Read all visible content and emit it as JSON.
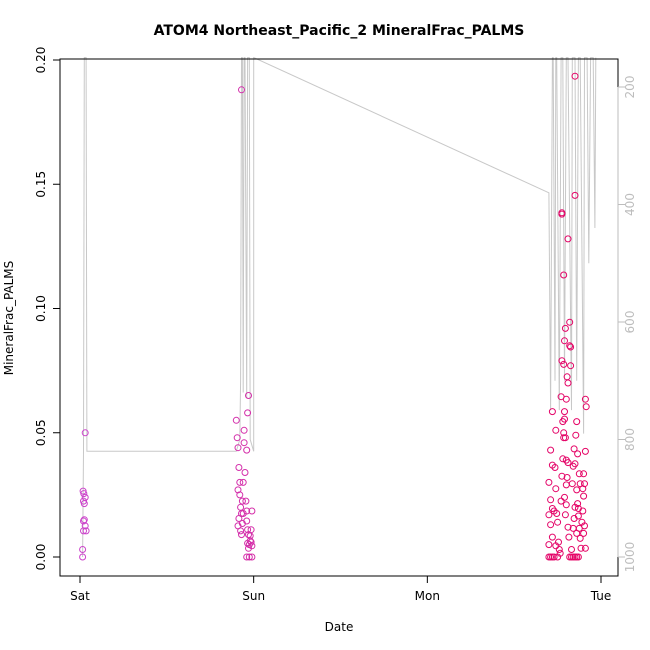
{
  "chart_data": {
    "type": "scatter",
    "title": "ATOM4 Northeast_Pacific_2 MineralFrac_PALMS",
    "xlabel": "Date",
    "ylabel": "MineralFrac_PALMS",
    "x_ticks": [
      "Sat",
      "Sun",
      "Mon",
      "Tue"
    ],
    "xlim": [
      -0.02,
      3.05
    ],
    "ylim": [
      -0.0065,
      0.2
    ],
    "y_ticks": [
      "0.00",
      "0.05",
      "0.10",
      "0.15",
      "0.20"
    ],
    "y_tick_values": [
      0,
      0.05,
      0.1,
      0.15,
      0.2
    ],
    "right_axis": {
      "ticks": [
        "200",
        "400",
        "600",
        "800",
        "1000"
      ],
      "tick_values": [
        200,
        400,
        600,
        800,
        1000
      ],
      "range": [
        1010,
        150
      ],
      "color": "#bdbdbd"
    },
    "background_line": {
      "color": "#c8c8c8",
      "points": [
        [
          0.015,
          1000
        ],
        [
          0.02,
          820
        ],
        [
          0.025,
          150
        ],
        [
          0.035,
          150
        ],
        [
          0.04,
          820
        ],
        [
          0.4,
          820
        ],
        [
          0.9,
          820
        ],
        [
          0.92,
          800
        ],
        [
          0.925,
          700
        ],
        [
          0.93,
          150
        ],
        [
          0.935,
          150
        ],
        [
          0.94,
          720
        ],
        [
          0.945,
          150
        ],
        [
          0.95,
          150
        ],
        [
          0.96,
          730
        ],
        [
          0.965,
          150
        ],
        [
          0.975,
          150
        ],
        [
          0.98,
          800
        ],
        [
          1.0,
          820
        ],
        [
          1.0,
          150
        ],
        [
          2.7,
          380
        ],
        [
          2.71,
          750
        ],
        [
          2.72,
          150
        ],
        [
          2.725,
          150
        ],
        [
          2.735,
          700
        ],
        [
          2.74,
          150
        ],
        [
          2.745,
          150
        ],
        [
          2.76,
          750
        ],
        [
          2.77,
          150
        ],
        [
          2.78,
          150
        ],
        [
          2.79,
          700
        ],
        [
          2.8,
          150
        ],
        [
          2.81,
          150
        ],
        [
          2.83,
          750
        ],
        [
          2.835,
          150
        ],
        [
          2.85,
          150
        ],
        [
          2.86,
          700
        ],
        [
          2.87,
          150
        ],
        [
          2.88,
          150
        ],
        [
          2.9,
          790
        ],
        [
          2.905,
          150
        ],
        [
          2.92,
          150
        ],
        [
          2.93,
          500
        ],
        [
          2.94,
          150
        ],
        [
          2.955,
          150
        ],
        [
          2.965,
          440
        ],
        [
          2.97,
          150
        ]
      ]
    },
    "series": [
      {
        "color_start": "#cc44cc",
        "color_end": "#e60060",
        "points": [
          [
            0.015,
            0.0
          ],
          [
            0.015,
            0.003
          ],
          [
            0.02,
            0.0105
          ],
          [
            0.02,
            0.0145
          ],
          [
            0.02,
            0.0225
          ],
          [
            0.022,
            0.0255
          ],
          [
            0.018,
            0.0265
          ],
          [
            0.025,
            0.0215
          ],
          [
            0.03,
            0.024
          ],
          [
            0.025,
            0.015
          ],
          [
            0.03,
            0.0125
          ],
          [
            0.035,
            0.0105
          ],
          [
            0.03,
            0.05
          ],
          [
            0.9,
            0.055
          ],
          [
            0.905,
            0.048
          ],
          [
            0.91,
            0.044
          ],
          [
            0.915,
            0.036
          ],
          [
            0.92,
            0.03
          ],
          [
            0.91,
            0.027
          ],
          [
            0.92,
            0.025
          ],
          [
            0.925,
            0.02
          ],
          [
            0.93,
            0.0175
          ],
          [
            0.915,
            0.0155
          ],
          [
            0.91,
            0.0125
          ],
          [
            0.925,
            0.0105
          ],
          [
            0.93,
            0.009
          ],
          [
            0.935,
            0.0135
          ],
          [
            0.94,
            0.0175
          ],
          [
            0.935,
            0.0225
          ],
          [
            0.94,
            0.03
          ],
          [
            0.945,
            0.046
          ],
          [
            0.945,
            0.051
          ],
          [
            0.95,
            0.034
          ],
          [
            0.955,
            0.0225
          ],
          [
            0.96,
            0.0185
          ],
          [
            0.96,
            0.0145
          ],
          [
            0.965,
            0.011
          ],
          [
            0.97,
            0.009
          ],
          [
            0.965,
            0.0055
          ],
          [
            0.975,
            0.005
          ],
          [
            0.98,
            0.0085
          ],
          [
            0.98,
            0.0065
          ],
          [
            0.985,
            0.006
          ],
          [
            0.97,
            0.0035
          ],
          [
            0.96,
            0.0
          ],
          [
            0.975,
            0.0
          ],
          [
            0.99,
            0.0
          ],
          [
            0.99,
            0.0045
          ],
          [
            0.99,
            0.0185
          ],
          [
            0.985,
            0.011
          ],
          [
            0.96,
            0.043
          ],
          [
            0.965,
            0.058
          ],
          [
            0.97,
            0.065
          ],
          [
            0.93,
            0.188
          ],
          [
            2.7,
            0.0
          ],
          [
            2.71,
            0.0
          ],
          [
            2.72,
            0.0
          ],
          [
            2.73,
            0.0
          ],
          [
            2.75,
            0.0
          ],
          [
            2.7,
            0.005
          ],
          [
            2.72,
            0.008
          ],
          [
            2.71,
            0.013
          ],
          [
            2.7,
            0.017
          ],
          [
            2.72,
            0.0195
          ],
          [
            2.73,
            0.0185
          ],
          [
            2.71,
            0.023
          ],
          [
            2.7,
            0.03
          ],
          [
            2.72,
            0.037
          ],
          [
            2.71,
            0.043
          ],
          [
            2.72,
            0.0585
          ],
          [
            2.74,
            0.051
          ],
          [
            2.735,
            0.036
          ],
          [
            2.74,
            0.0275
          ],
          [
            2.745,
            0.0175
          ],
          [
            2.75,
            0.014
          ],
          [
            2.755,
            0.006
          ],
          [
            2.76,
            0.003
          ],
          [
            2.765,
            0.0015
          ],
          [
            2.74,
            0.0045
          ],
          [
            2.77,
            0.0225
          ],
          [
            2.775,
            0.0325
          ],
          [
            2.78,
            0.0395
          ],
          [
            2.785,
            0.048
          ],
          [
            2.78,
            0.0545
          ],
          [
            2.77,
            0.0645
          ],
          [
            2.775,
            0.079
          ],
          [
            2.785,
            0.0775
          ],
          [
            2.79,
            0.087
          ],
          [
            2.795,
            0.092
          ],
          [
            2.805,
            0.0725
          ],
          [
            2.81,
            0.07
          ],
          [
            2.8,
            0.0635
          ],
          [
            2.82,
            0.085
          ],
          [
            2.82,
            0.0945
          ],
          [
            2.825,
            0.0845
          ],
          [
            2.825,
            0.077
          ],
          [
            2.81,
            0.128
          ],
          [
            2.775,
            0.138
          ],
          [
            2.775,
            0.1385
          ],
          [
            2.785,
            0.1135
          ],
          [
            2.79,
            0.0585
          ],
          [
            2.79,
            0.0555
          ],
          [
            2.785,
            0.05
          ],
          [
            2.795,
            0.048
          ],
          [
            2.8,
            0.039
          ],
          [
            2.81,
            0.038
          ],
          [
            2.805,
            0.032
          ],
          [
            2.8,
            0.029
          ],
          [
            2.79,
            0.024
          ],
          [
            2.795,
            0.017
          ],
          [
            2.8,
            0.021
          ],
          [
            2.81,
            0.012
          ],
          [
            2.815,
            0.008
          ],
          [
            2.82,
            0.0
          ],
          [
            2.83,
            0.0
          ],
          [
            2.84,
            0.0
          ],
          [
            2.85,
            0.0
          ],
          [
            2.86,
            0.0
          ],
          [
            2.87,
            0.0
          ],
          [
            2.83,
            0.003
          ],
          [
            2.84,
            0.0115
          ],
          [
            2.845,
            0.0155
          ],
          [
            2.85,
            0.02
          ],
          [
            2.835,
            0.0295
          ],
          [
            2.84,
            0.0365
          ],
          [
            2.845,
            0.0435
          ],
          [
            2.85,
            0.0375
          ],
          [
            2.86,
            0.027
          ],
          [
            2.865,
            0.0215
          ],
          [
            2.87,
            0.0165
          ],
          [
            2.875,
            0.0115
          ],
          [
            2.88,
            0.0075
          ],
          [
            2.885,
            0.0035
          ],
          [
            2.86,
            0.0095
          ],
          [
            2.89,
            0.014
          ],
          [
            2.895,
            0.0185
          ],
          [
            2.9,
            0.0245
          ],
          [
            2.905,
            0.0295
          ],
          [
            2.91,
            0.0425
          ],
          [
            2.9,
            0.0095
          ],
          [
            2.91,
            0.0035
          ],
          [
            2.905,
            0.0125
          ],
          [
            2.895,
            0.0275
          ],
          [
            2.9,
            0.0335
          ],
          [
            2.91,
            0.0635
          ],
          [
            2.915,
            0.0605
          ],
          [
            2.85,
            0.1935
          ],
          [
            2.85,
            0.1455
          ],
          [
            2.87,
            0.0195
          ],
          [
            2.88,
            0.0295
          ],
          [
            2.875,
            0.0335
          ],
          [
            2.865,
            0.0415
          ],
          [
            2.855,
            0.049
          ],
          [
            2.86,
            0.0545
          ]
        ]
      }
    ]
  }
}
